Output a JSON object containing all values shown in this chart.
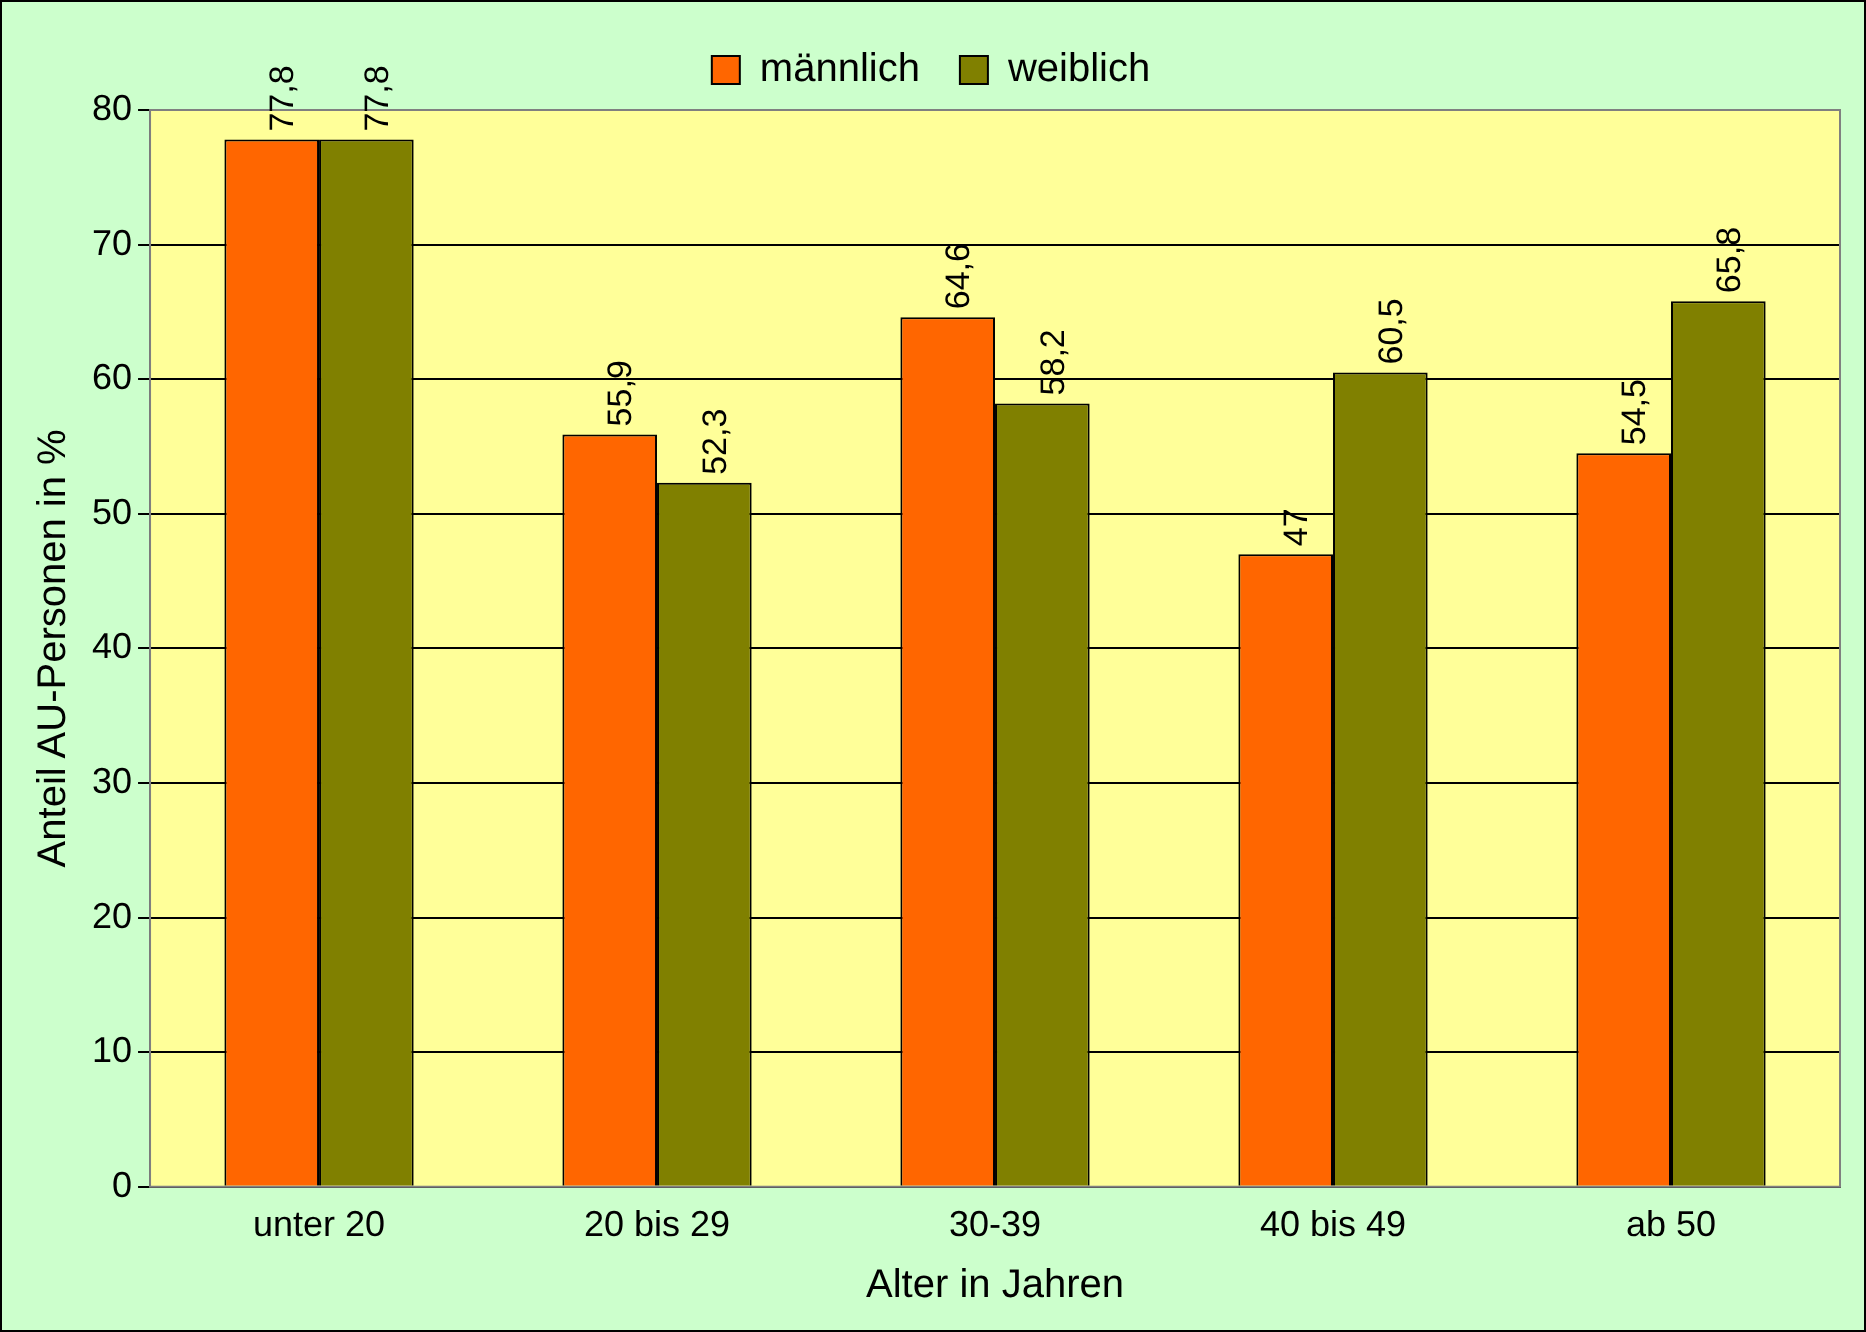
{
  "chart_data": {
    "type": "bar",
    "xlabel": "Alter in Jahren",
    "ylabel": "Anteil AU-Personen in %",
    "categories": [
      "unter 20",
      "20 bis 29",
      "30-39",
      "40 bis 49",
      "ab 50"
    ],
    "series": [
      {
        "name": "männlich",
        "color": "#ff6600",
        "values": [
          77.8,
          55.9,
          64.6,
          47,
          54.5
        ],
        "value_labels": [
          "77,8",
          "55,9",
          "64,6",
          "47",
          "54,5"
        ]
      },
      {
        "name": "weiblich",
        "color": "#808000",
        "values": [
          77.8,
          52.3,
          58.2,
          60.5,
          65.8
        ],
        "value_labels": [
          "77,8",
          "52,3",
          "58,2",
          "60,5",
          "65,8"
        ]
      }
    ],
    "ylim": [
      0,
      80
    ],
    "yticks": [
      0,
      10,
      20,
      30,
      40,
      50,
      60,
      70,
      80
    ],
    "grid": "y",
    "legend": "top"
  }
}
